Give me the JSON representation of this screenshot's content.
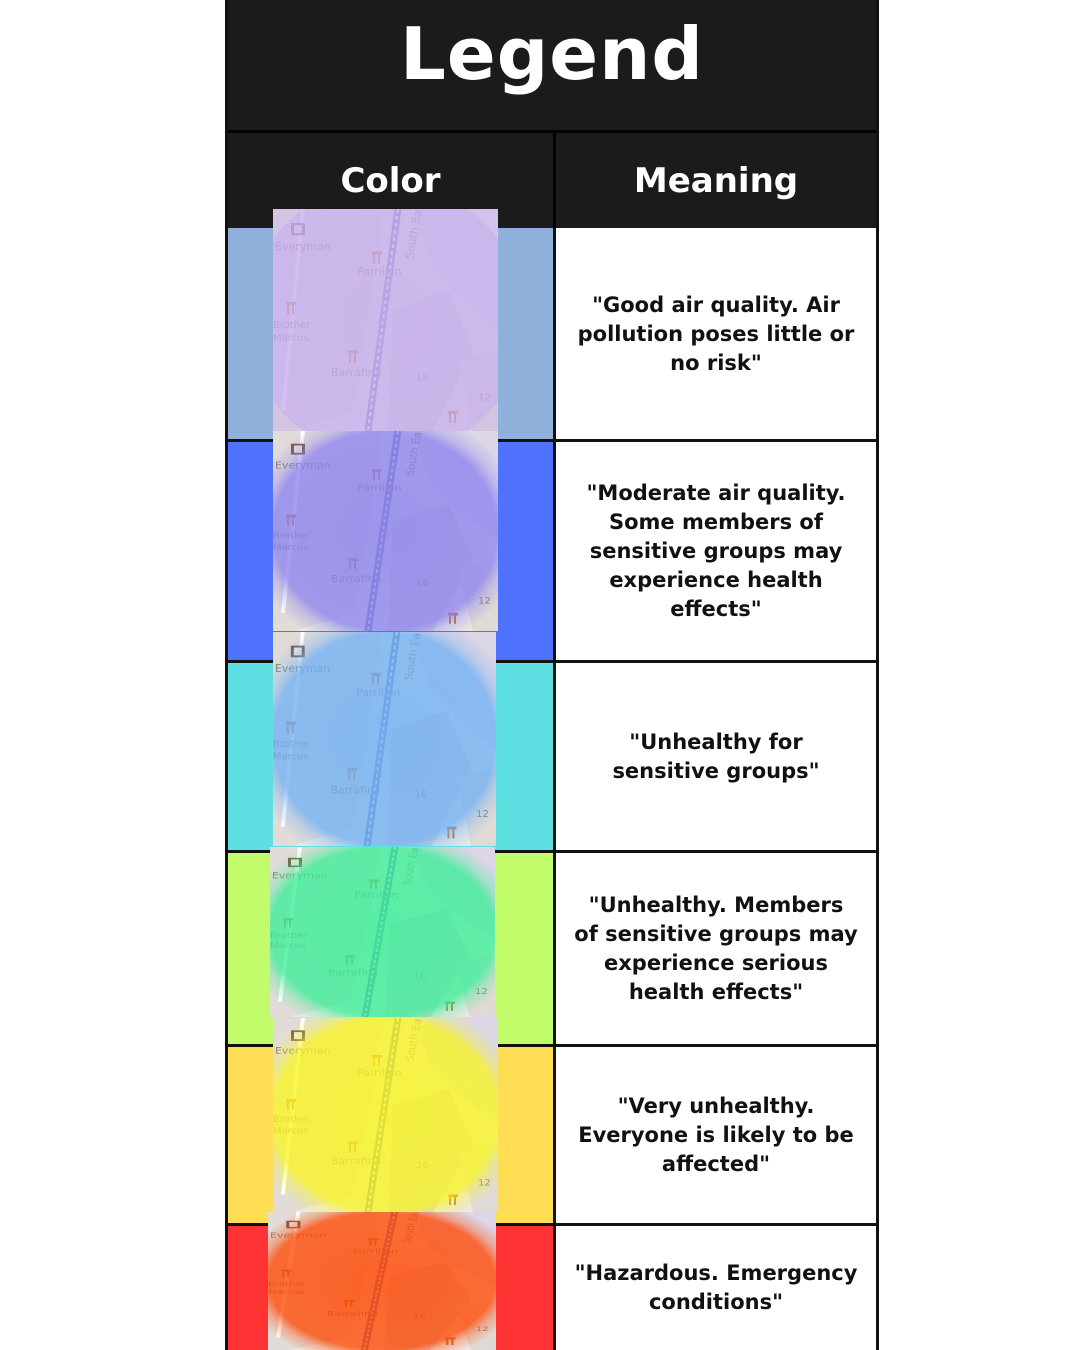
{
  "title": "Legend",
  "headers": {
    "color": "Color",
    "meaning": "Meaning"
  },
  "rows": [
    {
      "swatch_color": "#8fb0da",
      "overlay_color": "#c6b0ee",
      "meaning": "\"Good air quality. Air pollution poses little or no risk\""
    },
    {
      "swatch_color": "#4f72fd",
      "overlay_color": "#8f86ee",
      "meaning": "\"Moderate air quality. Some members of sensitive groups may experience health effects\""
    },
    {
      "swatch_color": "#5ee0e3",
      "overlay_color": "#74b2f3",
      "meaning": "\"Unhealthy for sensitive groups\""
    },
    {
      "swatch_color": "#c3fc6a",
      "overlay_color": "#3fee9a",
      "meaning": "\"Unhealthy. Members of sensitive groups may experience serious health effects\""
    },
    {
      "swatch_color": "#ffdd55",
      "overlay_color": "#f8f526",
      "meaning": "\"Very unhealthy. Everyone is likely to be affected\""
    },
    {
      "swatch_color": "#fe3434",
      "overlay_color": "#ff4d0a",
      "meaning": "\"Hazardous. Emergency conditions\""
    }
  ],
  "map_labels": {
    "cinema": "Everyman",
    "restaurant_1": "Parrillan",
    "restaurant_2": "Brother Marcus",
    "restaurant_3": "Barrafina",
    "street": "South Ea",
    "number_1": "16",
    "number_2": "12"
  }
}
